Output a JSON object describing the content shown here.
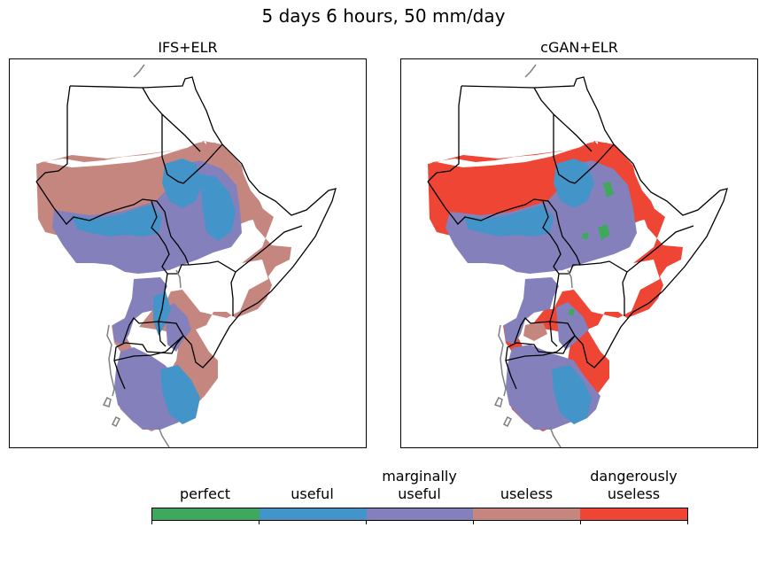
{
  "figure": {
    "title": "5 days 6 hours, 50 mm/day"
  },
  "panels": [
    {
      "title": "IFS+ELR"
    },
    {
      "title": "cGAN+ELR"
    }
  ],
  "colorbar": {
    "categories": [
      {
        "label": "perfect",
        "color": "#3fa85c"
      },
      {
        "label": "useful",
        "color": "#4394c8"
      },
      {
        "label": "marginally\nuseful",
        "color": "#8480bb"
      },
      {
        "label": "useless",
        "color": "#c58680"
      },
      {
        "label": "dangerously\nuseless",
        "color": "#ee4535"
      }
    ]
  },
  "map_style": {
    "border_color": "#000000",
    "lake_color": "#808080"
  }
}
